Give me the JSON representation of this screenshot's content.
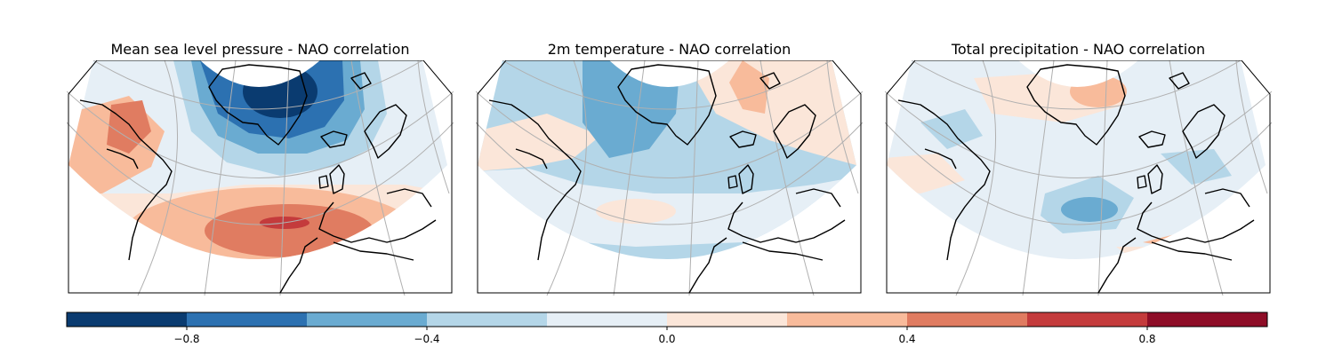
{
  "panels": [
    {
      "title": "Mean sea level pressure - NAO correlation",
      "field": "mslp"
    },
    {
      "title": "2m temperature - NAO correlation",
      "field": "t2m"
    },
    {
      "title": "Total precipitation - NAO correlation",
      "field": "tp"
    }
  ],
  "colorbar": {
    "min": -1.0,
    "max": 1.0,
    "levels": [
      -1.0,
      -0.8,
      -0.6,
      -0.4,
      -0.2,
      0.0,
      0.2,
      0.4,
      0.6,
      0.8,
      1.0
    ],
    "colors": [
      "#0a3b70",
      "#2c71b1",
      "#6aabd1",
      "#b4d6e8",
      "#e6eff6",
      "#fbe6d9",
      "#f8bb9b",
      "#e07c61",
      "#c43b3c",
      "#8e0d27"
    ],
    "ticks": [
      -0.8,
      -0.4,
      0.0,
      0.4,
      0.8
    ],
    "tick_labels": [
      "−0.8",
      "−0.4",
      "0.0",
      "0.4",
      "0.8"
    ]
  },
  "colors": {
    "coast": "#000000",
    "grid": "#b0b0b0"
  }
}
